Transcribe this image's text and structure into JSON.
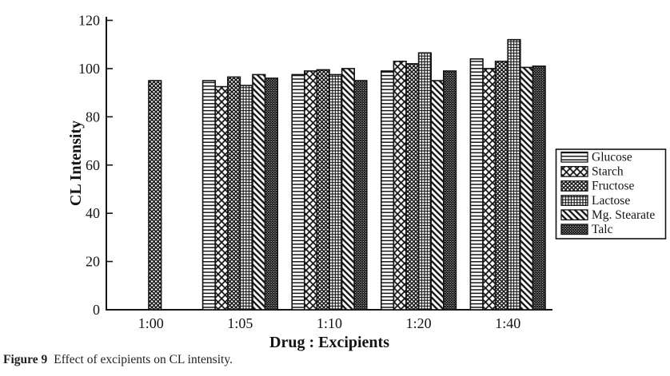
{
  "figure": {
    "caption_label": "Figure 9",
    "caption_text": "Effect of excipients on CL intensity."
  },
  "chart_data": {
    "type": "bar",
    "title": "",
    "xlabel": "Drug : Excipients",
    "ylabel": "CL Intensity",
    "ylim": [
      0,
      120
    ],
    "yticks": [
      0,
      20,
      40,
      60,
      80,
      100,
      120
    ],
    "grid": false,
    "legend_position": "right",
    "ink_color": "#141414",
    "background": "#ffffff",
    "categories": [
      "1:00",
      "1:05",
      "1:10",
      "1:20",
      "1:40"
    ],
    "series": [
      {
        "name": "Glucose",
        "pattern": "horizontal-lines",
        "values": [
          null,
          95,
          97.5,
          99,
          104
        ]
      },
      {
        "name": "Starch",
        "pattern": "diagonal-crosshatch-wide",
        "values": [
          null,
          92.5,
          99,
          103,
          100
        ]
      },
      {
        "name": "Fructose",
        "pattern": "diamond-crosshatch-dense",
        "values": [
          null,
          96.5,
          99.5,
          102,
          103
        ]
      },
      {
        "name": "Lactose",
        "pattern": "grid-fine",
        "values": [
          null,
          93,
          97.5,
          106.5,
          112
        ]
      },
      {
        "name": "Mg. Stearate",
        "pattern": "diagonal-lines",
        "values": [
          null,
          97.5,
          100,
          95,
          100.5
        ]
      },
      {
        "name": "Talc",
        "pattern": "checker-fine",
        "values": [
          null,
          96,
          95,
          99,
          101
        ]
      }
    ],
    "single_bar": {
      "category": "1:00",
      "value": 95,
      "pattern": "diamond-crosshatch-dense"
    },
    "legend_entries": [
      "Glucose",
      "Starch",
      "Fructose",
      "Lactose",
      "Mg. Stearate",
      "Talc"
    ]
  }
}
